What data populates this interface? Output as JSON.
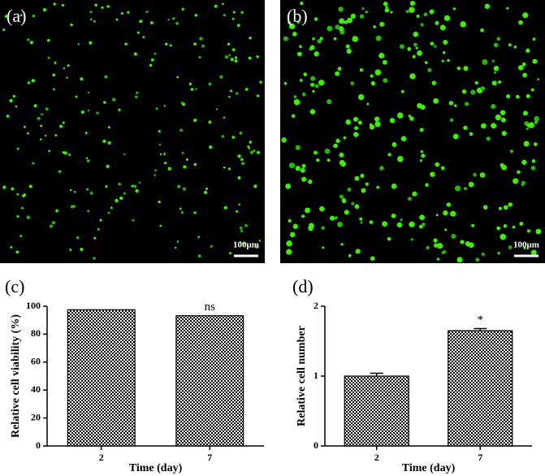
{
  "images": [
    {
      "label": "(a)",
      "scale_bar": "100μm"
    },
    {
      "label": "(b)",
      "scale_bar": "100μm"
    }
  ],
  "chart_data": [
    {
      "type": "bar",
      "panel_label": "(c)",
      "ylabel": "Relative cell viability (%)",
      "xlabel": "Time (day)",
      "categories": [
        "2",
        "7"
      ],
      "values": [
        97.5,
        93.2
      ],
      "color": "#000000",
      "ylim": [
        0,
        100
      ],
      "yticks": [
        0,
        20,
        40,
        60,
        80,
        100
      ],
      "annotations": [
        {
          "category": "7",
          "text": "ns"
        }
      ]
    },
    {
      "type": "bar",
      "panel_label": "(d)",
      "ylabel": "Relative cell number",
      "xlabel": "Time (day)",
      "categories": [
        "2",
        "7"
      ],
      "values": [
        1.0,
        1.65
      ],
      "errors": [
        0.04,
        0.03
      ],
      "color": "#000000",
      "ylim": [
        0,
        2
      ],
      "yticks": [
        0,
        1,
        2
      ],
      "annotations": [
        {
          "category": "7",
          "text": "*"
        }
      ]
    }
  ]
}
